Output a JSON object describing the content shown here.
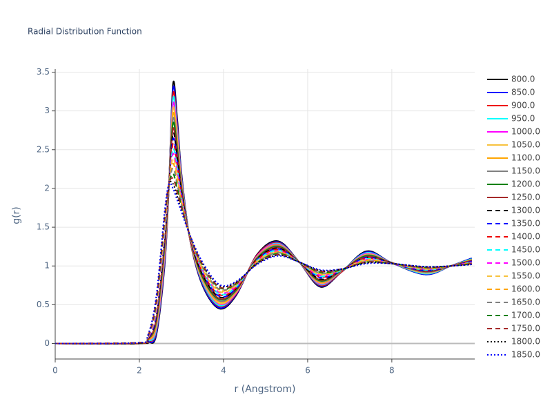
{
  "chart_data": {
    "type": "line",
    "title": "Radial Distribution Function",
    "x_label": "r (Angstrom)",
    "y_label": "g(r)",
    "x": [
      0,
      2,
      2.2,
      2.4,
      2.6,
      2.7,
      2.8,
      2.9,
      3.0,
      3.2,
      3.5,
      3.9,
      4.3,
      4.8,
      5.3,
      5.8,
      6.3,
      6.8,
      7.4,
      8.0,
      8.8,
      9.4,
      9.9
    ],
    "xlim": [
      0,
      9.97
    ],
    "xticks": [
      0,
      2,
      4,
      6,
      8
    ],
    "ylim": [
      -0.2,
      3.54
    ],
    "yticks": [
      0,
      0.5,
      1,
      1.5,
      2,
      2.5,
      3,
      3.5
    ],
    "grid": true,
    "series": [
      {
        "name": "800.0",
        "color": "#000000",
        "dash": "solid",
        "values": [
          0,
          0,
          0.02,
          0.1,
          1.0,
          2.0,
          3.35,
          2.9,
          2.2,
          1.35,
          0.75,
          0.45,
          0.62,
          1.15,
          1.32,
          1.05,
          0.73,
          0.92,
          1.19,
          1.04,
          0.89,
          1.0,
          1.1
        ]
      },
      {
        "name": "850.0",
        "color": "#0000ff",
        "dash": "solid",
        "values": [
          0,
          0,
          0.02,
          0.12,
          1.03,
          2.0,
          3.29,
          2.85,
          2.18,
          1.35,
          0.76,
          0.46,
          0.63,
          1.14,
          1.31,
          1.05,
          0.74,
          0.92,
          1.18,
          1.04,
          0.89,
          1.0,
          1.1
        ]
      },
      {
        "name": "900.0",
        "color": "#ee0000",
        "dash": "solid",
        "values": [
          0,
          0,
          0.03,
          0.15,
          1.07,
          2.0,
          3.22,
          2.8,
          2.15,
          1.35,
          0.78,
          0.48,
          0.64,
          1.14,
          1.3,
          1.05,
          0.75,
          0.92,
          1.17,
          1.04,
          0.9,
          1.0,
          1.09
        ]
      },
      {
        "name": "950.0",
        "color": "#00ffff",
        "dash": "solid",
        "values": [
          0,
          0,
          0.03,
          0.17,
          1.1,
          2.01,
          3.16,
          2.75,
          2.13,
          1.36,
          0.79,
          0.49,
          0.65,
          1.13,
          1.29,
          1.05,
          0.76,
          0.93,
          1.17,
          1.04,
          0.9,
          1.0,
          1.09
        ]
      },
      {
        "name": "1000.0",
        "color": "#ff00ff",
        "dash": "solid",
        "values": [
          0,
          0,
          0.04,
          0.2,
          1.13,
          2.01,
          3.09,
          2.7,
          2.1,
          1.36,
          0.81,
          0.51,
          0.65,
          1.13,
          1.28,
          1.05,
          0.77,
          0.93,
          1.16,
          1.04,
          0.91,
          1.0,
          1.08
        ]
      },
      {
        "name": "1050.0",
        "color": "#f7c23e",
        "dash": "solid",
        "values": [
          0,
          0,
          0.04,
          0.22,
          1.17,
          2.01,
          3.03,
          2.65,
          2.08,
          1.36,
          0.82,
          0.52,
          0.66,
          1.12,
          1.27,
          1.05,
          0.78,
          0.93,
          1.15,
          1.04,
          0.91,
          1.0,
          1.08
        ]
      },
      {
        "name": "1100.0",
        "color": "#ffa500",
        "dash": "solid",
        "values": [
          0,
          0,
          0.04,
          0.24,
          1.2,
          2.01,
          2.96,
          2.6,
          2.06,
          1.36,
          0.84,
          0.54,
          0.67,
          1.11,
          1.27,
          1.05,
          0.79,
          0.93,
          1.14,
          1.04,
          0.92,
          1.0,
          1.08
        ]
      },
      {
        "name": "1150.0",
        "color": "#808080",
        "dash": "solid",
        "values": [
          0,
          0,
          0.05,
          0.27,
          1.23,
          2.02,
          2.9,
          2.55,
          2.03,
          1.37,
          0.85,
          0.55,
          0.68,
          1.11,
          1.26,
          1.05,
          0.8,
          0.93,
          1.14,
          1.04,
          0.92,
          1.0,
          1.07
        ]
      },
      {
        "name": "1200.0",
        "color": "#008000",
        "dash": "solid",
        "values": [
          0,
          0,
          0.05,
          0.29,
          1.27,
          2.02,
          2.84,
          2.5,
          2.01,
          1.37,
          0.86,
          0.57,
          0.69,
          1.1,
          1.25,
          1.05,
          0.81,
          0.94,
          1.13,
          1.04,
          0.93,
          1.0,
          1.07
        ]
      },
      {
        "name": "1250.0",
        "color": "#a52a2a",
        "dash": "solid",
        "values": [
          0,
          0,
          0.05,
          0.31,
          1.3,
          2.02,
          2.77,
          2.45,
          1.99,
          1.37,
          0.88,
          0.58,
          0.7,
          1.09,
          1.24,
          1.05,
          0.82,
          0.94,
          1.12,
          1.04,
          0.93,
          1.0,
          1.07
        ]
      },
      {
        "name": "1300.0",
        "color": "#000000",
        "dash": "dash",
        "values": [
          0,
          0,
          0.06,
          0.34,
          1.33,
          2.02,
          2.71,
          2.4,
          1.96,
          1.37,
          0.89,
          0.6,
          0.71,
          1.09,
          1.23,
          1.05,
          0.83,
          0.94,
          1.11,
          1.04,
          0.94,
          1.0,
          1.06
        ]
      },
      {
        "name": "1350.0",
        "color": "#0000ff",
        "dash": "dash",
        "values": [
          0,
          0.01,
          0.06,
          0.36,
          1.37,
          2.03,
          2.64,
          2.35,
          1.94,
          1.38,
          0.91,
          0.61,
          0.71,
          1.08,
          1.22,
          1.05,
          0.85,
          0.94,
          1.11,
          1.03,
          0.94,
          1.0,
          1.06
        ]
      },
      {
        "name": "1400.0",
        "color": "#ee0000",
        "dash": "dash",
        "values": [
          0,
          0.01,
          0.07,
          0.39,
          1.4,
          2.03,
          2.58,
          2.3,
          1.91,
          1.38,
          0.92,
          0.63,
          0.72,
          1.08,
          1.21,
          1.05,
          0.86,
          0.94,
          1.1,
          1.03,
          0.95,
          1.0,
          1.05
        ]
      },
      {
        "name": "1450.0",
        "color": "#00ffff",
        "dash": "dash",
        "values": [
          0,
          0.01,
          0.07,
          0.41,
          1.43,
          2.03,
          2.51,
          2.25,
          1.89,
          1.38,
          0.94,
          0.64,
          0.73,
          1.07,
          1.2,
          1.05,
          0.87,
          0.94,
          1.09,
          1.03,
          0.95,
          1.0,
          1.05
        ]
      },
      {
        "name": "1500.0",
        "color": "#ff00ff",
        "dash": "dash",
        "values": [
          0,
          0.01,
          0.07,
          0.43,
          1.47,
          2.03,
          2.45,
          2.2,
          1.87,
          1.38,
          0.95,
          0.66,
          0.74,
          1.06,
          1.19,
          1.05,
          0.88,
          0.95,
          1.08,
          1.03,
          0.96,
          1.0,
          1.05
        ]
      },
      {
        "name": "1550.0",
        "color": "#f7c23e",
        "dash": "dash",
        "values": [
          0,
          0.01,
          0.08,
          0.46,
          1.5,
          2.04,
          2.39,
          2.15,
          1.84,
          1.39,
          0.96,
          0.67,
          0.75,
          1.06,
          1.18,
          1.05,
          0.89,
          0.95,
          1.08,
          1.03,
          0.96,
          1.0,
          1.04
        ]
      },
      {
        "name": "1600.0",
        "color": "#ffa500",
        "dash": "dash",
        "values": [
          0,
          0.01,
          0.08,
          0.48,
          1.53,
          2.04,
          2.32,
          2.1,
          1.82,
          1.39,
          0.98,
          0.69,
          0.76,
          1.05,
          1.18,
          1.05,
          0.9,
          0.95,
          1.07,
          1.03,
          0.97,
          1.0,
          1.04
        ]
      },
      {
        "name": "1650.0",
        "color": "#808080",
        "dash": "dash",
        "values": [
          0,
          0.01,
          0.08,
          0.5,
          1.57,
          2.04,
          2.26,
          2.05,
          1.8,
          1.39,
          0.99,
          0.7,
          0.77,
          1.04,
          1.17,
          1.05,
          0.91,
          0.95,
          1.06,
          1.03,
          0.97,
          1.0,
          1.04
        ]
      },
      {
        "name": "1700.0",
        "color": "#008000",
        "dash": "dash",
        "values": [
          0,
          0.01,
          0.09,
          0.53,
          1.6,
          2.04,
          2.19,
          2.0,
          1.77,
          1.39,
          1.01,
          0.72,
          0.77,
          1.04,
          1.16,
          1.05,
          0.92,
          0.95,
          1.05,
          1.03,
          0.98,
          1.0,
          1.03
        ]
      },
      {
        "name": "1750.0",
        "color": "#a52a2a",
        "dash": "dash",
        "values": [
          0,
          0.01,
          0.09,
          0.55,
          1.63,
          2.05,
          2.13,
          1.95,
          1.75,
          1.4,
          1.02,
          0.73,
          0.78,
          1.03,
          1.15,
          1.05,
          0.93,
          0.96,
          1.05,
          1.03,
          0.98,
          1.0,
          1.03
        ]
      },
      {
        "name": "1800.0",
        "color": "#000000",
        "dash": "dot",
        "values": [
          0,
          0.01,
          0.1,
          0.58,
          1.67,
          2.05,
          2.06,
          1.9,
          1.72,
          1.4,
          1.04,
          0.75,
          0.79,
          1.03,
          1.14,
          1.05,
          0.94,
          0.96,
          1.04,
          1.03,
          0.99,
          1.0,
          1.02
        ]
      },
      {
        "name": "1850.0",
        "color": "#0000ff",
        "dash": "dot",
        "values": [
          0,
          0.01,
          0.1,
          0.6,
          1.7,
          2.05,
          2.0,
          1.85,
          1.7,
          1.4,
          1.05,
          0.76,
          0.8,
          1.02,
          1.13,
          1.05,
          0.95,
          0.96,
          1.03,
          1.03,
          0.99,
          1.0,
          1.02
        ]
      }
    ]
  }
}
